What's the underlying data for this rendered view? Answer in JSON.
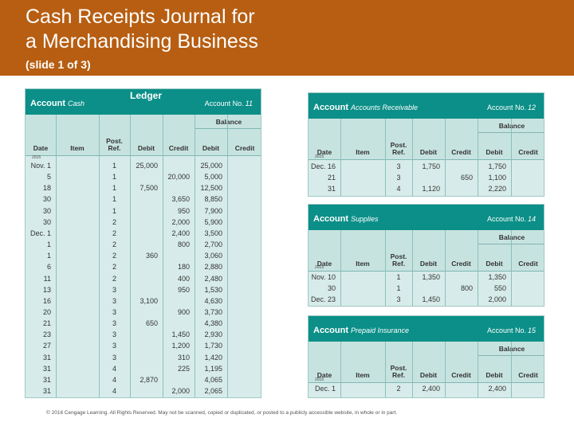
{
  "slide": {
    "title_line1": "Cash Receipts Journal for",
    "title_line2": "a Merchandising Business",
    "subtitle": "(slide 1 of 3)"
  },
  "common_headers": {
    "date": "Date",
    "item": "Item",
    "post_ref_1": "Post.",
    "post_ref_2": "Ref.",
    "debit": "Debit",
    "credit": "Credit",
    "balance": "Balance",
    "account": "Account",
    "account_no": "Account No."
  },
  "ledger_title": "Ledger",
  "ledgers": [
    {
      "name": "Cash",
      "number": "11",
      "year": "2015",
      "rows": [
        {
          "date": "Nov. 1",
          "ref": "1",
          "debit": "25,000",
          "credit": "",
          "bal_debit": "25,000",
          "bal_credit": ""
        },
        {
          "date": "5",
          "ref": "1",
          "debit": "",
          "credit": "20,000",
          "bal_debit": "5,000",
          "bal_credit": ""
        },
        {
          "date": "18",
          "ref": "1",
          "debit": "7,500",
          "credit": "",
          "bal_debit": "12,500",
          "bal_credit": ""
        },
        {
          "date": "30",
          "ref": "1",
          "debit": "",
          "credit": "3,650",
          "bal_debit": "8,850",
          "bal_credit": ""
        },
        {
          "date": "30",
          "ref": "1",
          "debit": "",
          "credit": "950",
          "bal_debit": "7,900",
          "bal_credit": ""
        },
        {
          "date": "30",
          "ref": "2",
          "debit": "",
          "credit": "2,000",
          "bal_debit": "5,900",
          "bal_credit": ""
        },
        {
          "date": "Dec. 1",
          "ref": "2",
          "debit": "",
          "credit": "2,400",
          "bal_debit": "3,500",
          "bal_credit": ""
        },
        {
          "date": "1",
          "ref": "2",
          "debit": "",
          "credit": "800",
          "bal_debit": "2,700",
          "bal_credit": ""
        },
        {
          "date": "1",
          "ref": "2",
          "debit": "360",
          "credit": "",
          "bal_debit": "3,060",
          "bal_credit": ""
        },
        {
          "date": "6",
          "ref": "2",
          "debit": "",
          "credit": "180",
          "bal_debit": "2,880",
          "bal_credit": ""
        },
        {
          "date": "11",
          "ref": "2",
          "debit": "",
          "credit": "400",
          "bal_debit": "2,480",
          "bal_credit": ""
        },
        {
          "date": "13",
          "ref": "3",
          "debit": "",
          "credit": "950",
          "bal_debit": "1,530",
          "bal_credit": ""
        },
        {
          "date": "16",
          "ref": "3",
          "debit": "3,100",
          "credit": "",
          "bal_debit": "4,630",
          "bal_credit": ""
        },
        {
          "date": "20",
          "ref": "3",
          "debit": "",
          "credit": "900",
          "bal_debit": "3,730",
          "bal_credit": ""
        },
        {
          "date": "21",
          "ref": "3",
          "debit": "650",
          "credit": "",
          "bal_debit": "4,380",
          "bal_credit": ""
        },
        {
          "date": "23",
          "ref": "3",
          "debit": "",
          "credit": "1,450",
          "bal_debit": "2,930",
          "bal_credit": ""
        },
        {
          "date": "27",
          "ref": "3",
          "debit": "",
          "credit": "1,200",
          "bal_debit": "1,730",
          "bal_credit": ""
        },
        {
          "date": "31",
          "ref": "3",
          "debit": "",
          "credit": "310",
          "bal_debit": "1,420",
          "bal_credit": ""
        },
        {
          "date": "31",
          "ref": "4",
          "debit": "",
          "credit": "225",
          "bal_debit": "1,195",
          "bal_credit": ""
        },
        {
          "date": "31",
          "ref": "4",
          "debit": "2,870",
          "credit": "",
          "bal_debit": "4,065",
          "bal_credit": ""
        },
        {
          "date": "31",
          "ref": "4",
          "debit": "",
          "credit": "2,000",
          "bal_debit": "2,065",
          "bal_credit": ""
        }
      ]
    },
    {
      "name": "Accounts Receivable",
      "number": "12",
      "year": "2015",
      "rows": [
        {
          "date": "Dec. 16",
          "ref": "3",
          "debit": "1,750",
          "credit": "",
          "bal_debit": "1,750",
          "bal_credit": ""
        },
        {
          "date": "21",
          "ref": "3",
          "debit": "",
          "credit": "650",
          "bal_debit": "1,100",
          "bal_credit": ""
        },
        {
          "date": "31",
          "ref": "4",
          "debit": "1,120",
          "credit": "",
          "bal_debit": "2,220",
          "bal_credit": ""
        }
      ]
    },
    {
      "name": "Supplies",
      "number": "14",
      "year": "2015",
      "rows": [
        {
          "date": "Nov. 10",
          "ref": "1",
          "debit": "1,350",
          "credit": "",
          "bal_debit": "1,350",
          "bal_credit": ""
        },
        {
          "date": "30",
          "ref": "1",
          "debit": "",
          "credit": "800",
          "bal_debit": "550",
          "bal_credit": ""
        },
        {
          "date": "Dec. 23",
          "ref": "3",
          "debit": "1,450",
          "credit": "",
          "bal_debit": "2,000",
          "bal_credit": ""
        }
      ]
    },
    {
      "name": "Prepaid Insurance",
      "number": "15",
      "year": "2015",
      "rows": [
        {
          "date": "Dec. 1",
          "ref": "2",
          "debit": "2,400",
          "credit": "",
          "bal_debit": "2,400",
          "bal_credit": ""
        }
      ]
    }
  ],
  "footer": "© 2016 Cengage Learning. All Rights Reserved. May not be scanned, copied or duplicated, or posted to a publicly accessible website, in whole or in part.",
  "colors": {
    "header_band": "#b75e12",
    "panel_head": "#0b8f88",
    "panel_bg": "#d7ecea"
  }
}
